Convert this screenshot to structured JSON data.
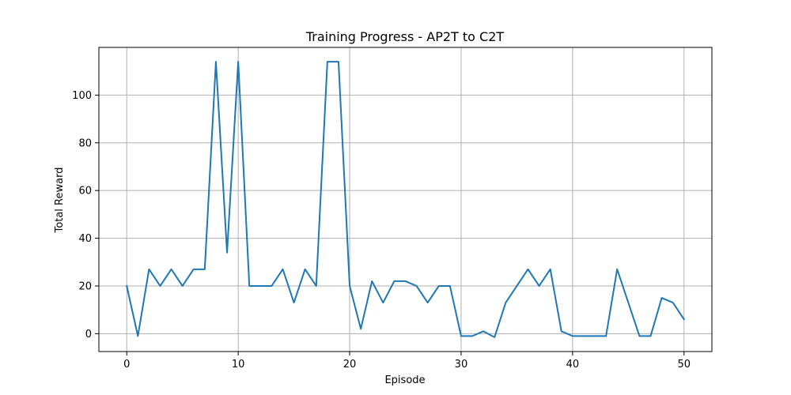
{
  "chart_data": {
    "type": "line",
    "title": "Training Progress - AP2T to C2T",
    "xlabel": "Episode",
    "ylabel": "Total Reward",
    "xlim": [
      -2.5,
      52.5
    ],
    "ylim": [
      -7.5,
      120
    ],
    "grid": true,
    "xticks": [
      0,
      10,
      20,
      30,
      40,
      50
    ],
    "yticks": [
      0,
      20,
      40,
      60,
      80,
      100
    ],
    "series": [
      {
        "color": "#1f77b4",
        "x": [
          0,
          1,
          2,
          3,
          4,
          5,
          6,
          7,
          8,
          9,
          10,
          11,
          12,
          13,
          14,
          15,
          16,
          17,
          18,
          19,
          20,
          21,
          22,
          23,
          24,
          25,
          26,
          27,
          28,
          29,
          30,
          31,
          32,
          33,
          34,
          35,
          36,
          37,
          38,
          39,
          40,
          41,
          42,
          43,
          44,
          45,
          46,
          47,
          48,
          49,
          50
        ],
        "y": [
          20,
          -1,
          27,
          20,
          27,
          20,
          27,
          27,
          114,
          34,
          114,
          20,
          20,
          20,
          27,
          13,
          27,
          20,
          114,
          114,
          20,
          2,
          22,
          13,
          22,
          22,
          20,
          13,
          20,
          20,
          -1,
          -1,
          1,
          -1.5,
          13,
          20,
          27,
          20,
          27,
          1,
          -1,
          -1,
          -1,
          -1,
          27,
          13,
          -1,
          -1,
          15,
          13,
          6
        ]
      }
    ]
  }
}
